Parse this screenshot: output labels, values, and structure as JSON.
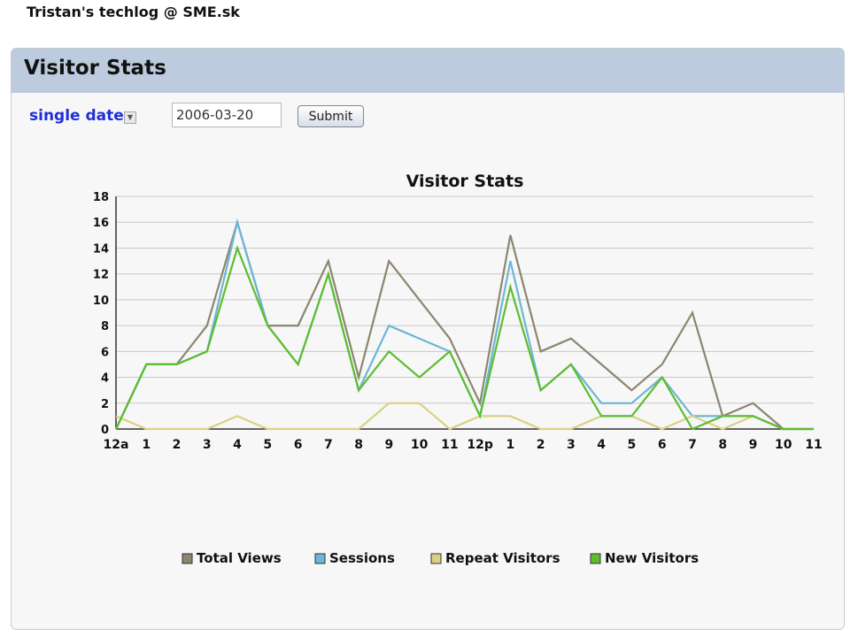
{
  "header": {
    "site_title": "Tristan's techlog @ SME.sk"
  },
  "panel": {
    "title": "Visitor Stats"
  },
  "controls": {
    "date_mode": "single date",
    "date_value": "2006-03-20",
    "submit_label": "Submit"
  },
  "chart_data": {
    "type": "line",
    "title": "Visitor Stats",
    "categories": [
      "12a",
      "1",
      "2",
      "3",
      "4",
      "5",
      "6",
      "7",
      "8",
      "9",
      "10",
      "11",
      "12p",
      "1",
      "2",
      "3",
      "4",
      "5",
      "6",
      "7",
      "8",
      "9",
      "10",
      "11"
    ],
    "ylim": [
      0,
      18
    ],
    "yticks": [
      0,
      2,
      4,
      6,
      8,
      10,
      12,
      14,
      16,
      18
    ],
    "grid": true,
    "legend_position": "bottom",
    "series": [
      {
        "name": "Total Views",
        "color": "#8c8670",
        "values": [
          0,
          5,
          5,
          8,
          16,
          8,
          8,
          13,
          4,
          13,
          10,
          7,
          2,
          15,
          6,
          7,
          5,
          3,
          5,
          9,
          1,
          2,
          0,
          0
        ]
      },
      {
        "name": "Sessions",
        "color": "#6cb6d6",
        "values": [
          0,
          5,
          5,
          6,
          16,
          8,
          5,
          12,
          3,
          8,
          7,
          6,
          1,
          13,
          3,
          5,
          2,
          2,
          4,
          1,
          1,
          1,
          0,
          0
        ]
      },
      {
        "name": "Repeat Visitors",
        "color": "#d8d282",
        "values": [
          1,
          0,
          0,
          0,
          1,
          0,
          0,
          0,
          0,
          2,
          2,
          0,
          1,
          1,
          0,
          0,
          1,
          1,
          0,
          1,
          0,
          1,
          0,
          0
        ]
      },
      {
        "name": "New Visitors",
        "color": "#5cbd2e",
        "values": [
          0,
          5,
          5,
          6,
          14,
          8,
          5,
          12,
          3,
          6,
          4,
          6,
          1,
          11,
          3,
          5,
          1,
          1,
          4,
          0,
          1,
          1,
          0,
          0
        ]
      }
    ]
  }
}
